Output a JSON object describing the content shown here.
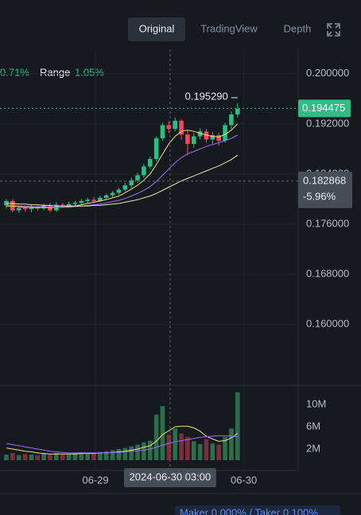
{
  "toolbar": {
    "tabs": [
      "Original",
      "TradingView",
      "Depth"
    ],
    "active": 0
  },
  "stats": {
    "change": "0.71%",
    "range_label": "Range",
    "range": "1.05%"
  },
  "chart_data": [
    {
      "type": "candlestick",
      "up_color": "#2ebd85",
      "down_color": "#f6465d",
      "open": [
        0.179,
        0.1797,
        0.1782,
        0.1786,
        0.1784,
        0.1788,
        0.1785,
        0.179,
        0.1782,
        0.1791,
        0.1789,
        0.1792,
        0.1794,
        0.1797,
        0.1799,
        0.1797,
        0.1802,
        0.1806,
        0.181,
        0.1815,
        0.1822,
        0.183,
        0.1838,
        0.1852,
        0.1864,
        0.1897,
        0.1918,
        0.1912,
        0.1925,
        0.1903,
        0.1888,
        0.19,
        0.1908,
        0.1895,
        0.1902,
        0.1893,
        0.1918,
        0.1935
      ],
      "high": [
        0.18,
        0.18,
        0.179,
        0.1789,
        0.1791,
        0.179,
        0.1793,
        0.1794,
        0.1795,
        0.1794,
        0.1796,
        0.1797,
        0.18,
        0.1802,
        0.1803,
        0.1805,
        0.1809,
        0.1813,
        0.1818,
        0.1826,
        0.1834,
        0.1842,
        0.1856,
        0.1868,
        0.19,
        0.1922,
        0.1924,
        0.193,
        0.1928,
        0.191,
        0.1905,
        0.1913,
        0.1912,
        0.1907,
        0.1906,
        0.1922,
        0.194,
        0.1953
      ],
      "low": [
        0.1785,
        0.1779,
        0.1778,
        0.178,
        0.1779,
        0.1781,
        0.1782,
        0.1779,
        0.178,
        0.1786,
        0.1787,
        0.1789,
        0.1791,
        0.1794,
        0.1793,
        0.1795,
        0.1799,
        0.1803,
        0.1807,
        0.1812,
        0.1818,
        0.1826,
        0.1834,
        0.1848,
        0.186,
        0.1893,
        0.1905,
        0.1908,
        0.1895,
        0.187,
        0.1882,
        0.1895,
        0.189,
        0.1888,
        0.1885,
        0.189,
        0.1912,
        0.193
      ],
      "close": [
        0.1797,
        0.1782,
        0.1786,
        0.1784,
        0.1788,
        0.1785,
        0.179,
        0.1782,
        0.1791,
        0.1789,
        0.1792,
        0.1794,
        0.1797,
        0.1799,
        0.1797,
        0.1802,
        0.1806,
        0.181,
        0.1815,
        0.1822,
        0.183,
        0.1838,
        0.1852,
        0.1864,
        0.1897,
        0.1918,
        0.1912,
        0.1925,
        0.1903,
        0.1888,
        0.19,
        0.1908,
        0.1895,
        0.1902,
        0.1893,
        0.1918,
        0.1935,
        0.1944
      ],
      "series": [
        {
          "color": "#f0e27a",
          "values": [
            0.1789,
            0.1789,
            0.1788,
            0.1787,
            0.1787,
            0.1786,
            0.1787,
            0.1786,
            0.1787,
            0.1787,
            0.1788,
            0.1789,
            0.1791,
            0.1793,
            0.1795,
            0.1797,
            0.1799,
            0.1802,
            0.1805,
            0.181,
            0.1816,
            0.1822,
            0.183,
            0.184,
            0.1855,
            0.1872,
            0.1888,
            0.19,
            0.1908,
            0.191,
            0.1908,
            0.1905,
            0.1902,
            0.19,
            0.1899,
            0.1903,
            0.191,
            0.192
          ]
        },
        {
          "color": "#9b6cf0",
          "values": [
            0.179,
            0.179,
            0.1789,
            0.1789,
            0.1788,
            0.1788,
            0.1788,
            0.1787,
            0.1787,
            0.1787,
            0.1787,
            0.1788,
            0.1789,
            0.179,
            0.1791,
            0.1792,
            0.1794,
            0.1796,
            0.1798,
            0.1801,
            0.1805,
            0.1809,
            0.1814,
            0.182,
            0.1828,
            0.1838,
            0.1848,
            0.1858,
            0.1866,
            0.1872,
            0.1876,
            0.188,
            0.1884,
            0.1887,
            0.189,
            0.1893,
            0.1897,
            0.1902
          ]
        },
        {
          "color": "#e8e6b0",
          "values": [
            0.1793,
            0.1793,
            0.1792,
            0.1792,
            0.1791,
            0.1791,
            0.179,
            0.179,
            0.1789,
            0.1789,
            0.1789,
            0.1789,
            0.1789,
            0.1789,
            0.179,
            0.179,
            0.1791,
            0.1792,
            0.1793,
            0.1795,
            0.1797,
            0.1799,
            0.1802,
            0.1805,
            0.1809,
            0.1814,
            0.1819,
            0.1824,
            0.1829,
            0.1833,
            0.1837,
            0.1841,
            0.1845,
            0.1849,
            0.1853,
            0.1858,
            0.1863,
            0.187
          ]
        }
      ],
      "xlim": [
        -1.02,
        46.7
      ],
      "xticks": [
        {
          "value": 14.25,
          "label": "06-29"
        },
        {
          "value": 38.0,
          "label": "06-30"
        }
      ],
      "ylim": [
        0.1509,
        0.2039
      ],
      "yticks": [
        {
          "value": 0.16,
          "label": "0.160000"
        },
        {
          "value": 0.168,
          "label": "0.168000"
        },
        {
          "value": 0.176,
          "label": "0.176000"
        },
        {
          "value": 0.184,
          "label": "0.184000"
        },
        {
          "value": 0.192,
          "label": "0.192000"
        },
        {
          "value": 0.2,
          "label": "0.200000"
        }
      ],
      "last_price": 0.194475,
      "high_marker": {
        "value": 0.19529,
        "label": "0.195290"
      },
      "crosshair": {
        "x": 26.2,
        "x_label": "2024-06-30 03:00",
        "y": 0.182868,
        "change": "-5.96%"
      },
      "grid": true
    },
    {
      "type": "bar",
      "up_color": "#2a6e4c",
      "down_color": "#7c2c3b",
      "values": [
        1.0,
        1.3,
        0.9,
        1.1,
        1.0,
        0.9,
        1.2,
        1.0,
        1.3,
        1.1,
        1.0,
        1.2,
        1.4,
        1.3,
        1.2,
        1.5,
        1.6,
        1.8,
        2.0,
        2.2,
        2.5,
        2.8,
        3.2,
        3.5,
        8.2,
        9.7,
        4.6,
        5.7,
        4.8,
        4.2,
        3.4,
        2.9,
        3.8,
        3.0,
        2.8,
        4.2,
        5.7,
        12.2
      ],
      "series": [
        {
          "color": "#f0e27a",
          "values": [
            2.2,
            2.0,
            1.8,
            1.6,
            1.5,
            1.3,
            1.2,
            1.1,
            1.1,
            1.1,
            1.1,
            1.1,
            1.2,
            1.2,
            1.2,
            1.3,
            1.3,
            1.4,
            1.5,
            1.6,
            1.8,
            2.0,
            2.3,
            2.6,
            3.4,
            4.6,
            5.3,
            6.0,
            6.1,
            6.1,
            5.8,
            5.2,
            4.3,
            3.8,
            3.4,
            3.5,
            4.0,
            4.8
          ]
        },
        {
          "color": "#9b6cf0",
          "values": [
            3.0,
            2.8,
            2.6,
            2.4,
            2.2,
            2.0,
            1.8,
            1.6,
            1.5,
            1.4,
            1.3,
            1.3,
            1.3,
            1.3,
            1.3,
            1.3,
            1.3,
            1.4,
            1.4,
            1.5,
            1.6,
            1.7,
            1.8,
            2.0,
            2.3,
            2.7,
            3.0,
            3.3,
            3.5,
            3.7,
            3.9,
            4.1,
            4.2,
            4.3,
            4.4,
            4.4,
            4.3,
            4.2
          ]
        }
      ],
      "ylim": [
        0,
        12.7
      ],
      "yticks": [
        {
          "value": 2,
          "label": "2M"
        },
        {
          "value": 6,
          "label": "6M"
        },
        {
          "value": 10,
          "label": "10M"
        }
      ]
    }
  ],
  "footer": {
    "fees": "Maker 0.000% / Taker 0.100%"
  }
}
